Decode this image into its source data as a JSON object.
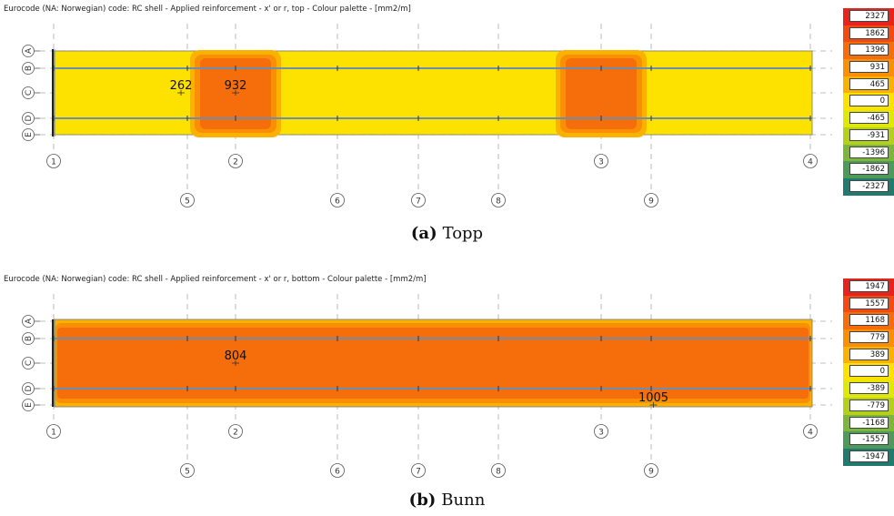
{
  "panels": [
    {
      "title": "Eurocode (NA: Norwegian) code: RC shell - Applied reinforcement - x' or r, top - Colour palette - [mm2/m]",
      "caption_label": "(a)",
      "caption_text": "Topp",
      "mode": "top",
      "legend": [
        "2327",
        "1862",
        "1396",
        "931",
        "465",
        "0",
        "-465",
        "-931",
        "-1396",
        "-1862",
        "-2327"
      ],
      "values": [
        {
          "text": "262",
          "vx": 1.7,
          "vy": "C"
        },
        {
          "text": "932",
          "vx": 2.0,
          "vy": "C"
        }
      ]
    },
    {
      "title": "Eurocode (NA: Norwegian) code: RC shell - Applied reinforcement - x' or r, bottom - Colour palette - [mm2/m]",
      "caption_label": "(b)",
      "caption_text": "Bunn",
      "mode": "bottom",
      "legend": [
        "1947",
        "1557",
        "1168",
        "779",
        "389",
        "0",
        "-389",
        "-779",
        "-1168",
        "-1557",
        "-1947"
      ],
      "values": [
        {
          "text": "804",
          "vx": 2.0,
          "vy": "C"
        },
        {
          "text": "1005",
          "vx": 3.25,
          "vy": "E"
        }
      ]
    }
  ],
  "grid": {
    "rows": [
      "A",
      "B",
      "C",
      "D",
      "E"
    ],
    "columns_main": [
      "1",
      "2",
      "3",
      "4"
    ],
    "columns_secondary": [
      "5",
      "6",
      "7",
      "8",
      "9"
    ]
  },
  "palette": [
    "#e8231c",
    "#f24a13",
    "#f66e0c",
    "#f98f04",
    "#fbb100",
    "#fde200",
    "#dfe80a",
    "#b4d01c",
    "#7cb63a",
    "#4d9a5a",
    "#1e7b6e"
  ]
}
